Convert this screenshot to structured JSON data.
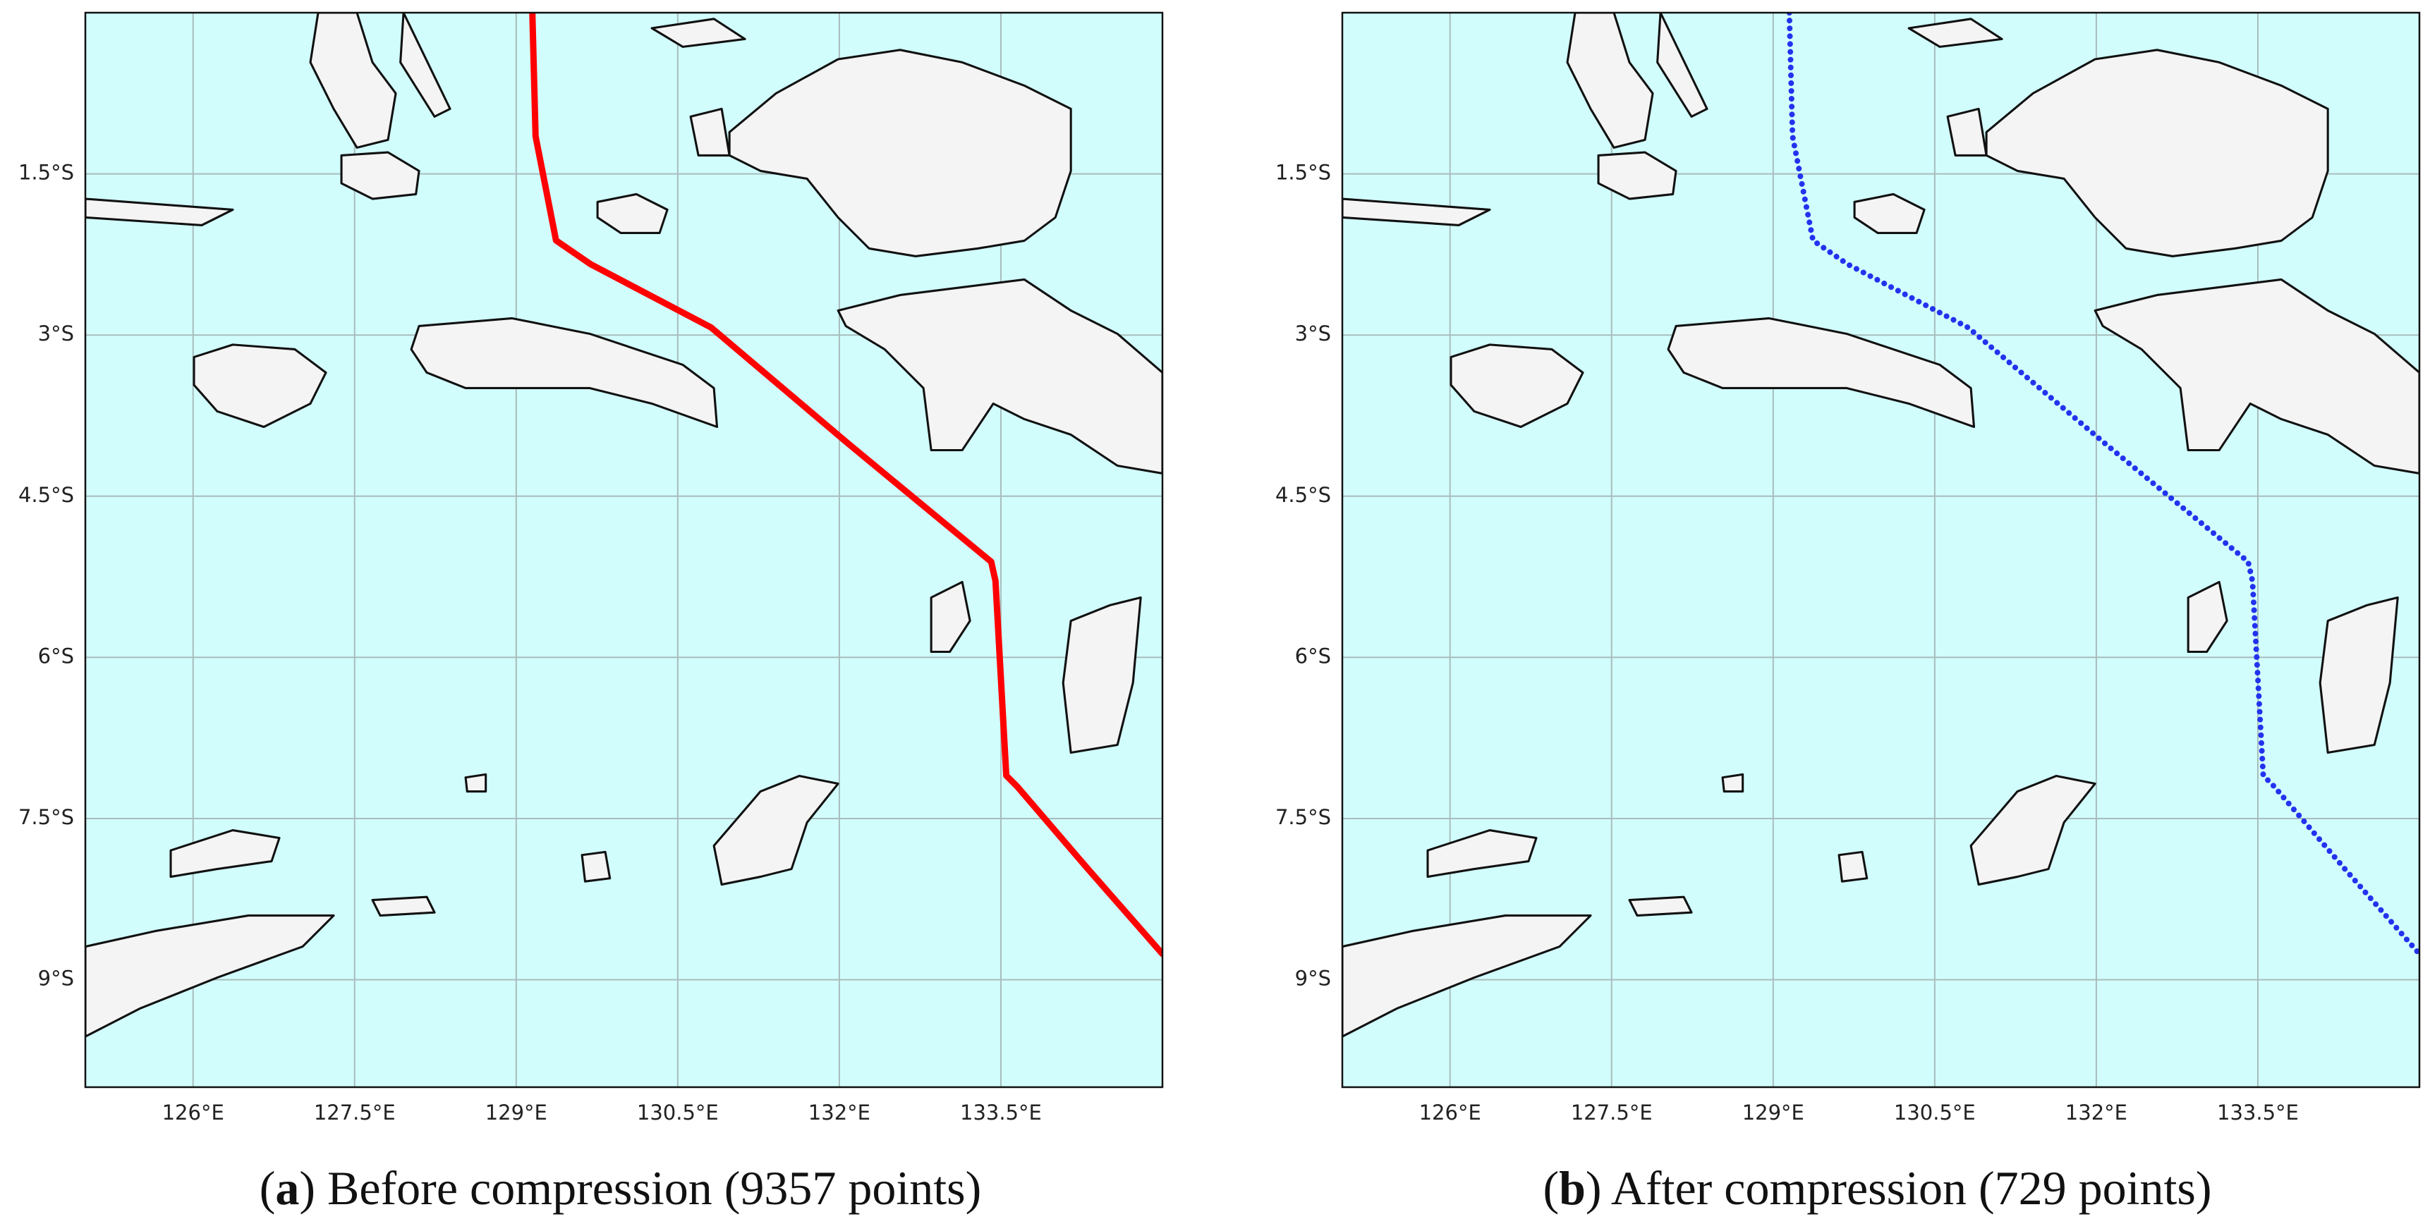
{
  "chart_data": [
    {
      "type": "line",
      "caption": "(a) Before compression (9357 points)",
      "color": "#ff0000",
      "line_style": "solid",
      "grid": true,
      "xlim": [
        125,
        135
      ],
      "ylim": [
        -10,
        0
      ],
      "xticks": [
        {
          "value": 126,
          "label": "126°E"
        },
        {
          "value": 127.5,
          "label": "127.5°E"
        },
        {
          "value": 129,
          "label": "129°E"
        },
        {
          "value": 130.5,
          "label": "130.5°E"
        },
        {
          "value": 132,
          "label": "132°E"
        },
        {
          "value": 133.5,
          "label": "133.5°E"
        }
      ],
      "yticks": [
        {
          "value": -1.5,
          "label": "1.5°S"
        },
        {
          "value": -3,
          "label": "3°S"
        },
        {
          "value": -4.5,
          "label": "4.5°S"
        },
        {
          "value": -6,
          "label": "6°S"
        },
        {
          "value": -7.5,
          "label": "7.5°S"
        },
        {
          "value": -9,
          "label": "9°S"
        }
      ],
      "x": [
        129.15,
        129.18,
        129.37,
        129.69,
        130.81,
        132.07,
        133.41,
        133.45,
        133.55,
        133.65,
        134.3,
        135.0
      ],
      "values": [
        0,
        -1.15,
        -2.12,
        -2.34,
        -2.93,
        -4.0,
        -5.11,
        -5.29,
        -7.1,
        -7.2,
        -7.96,
        -8.76
      ]
    },
    {
      "type": "line",
      "caption": "(b) After compression (729 points)",
      "color": "#2233ee",
      "line_style": "dotted",
      "grid": true,
      "xlim": [
        125,
        135
      ],
      "ylim": [
        -10,
        0
      ],
      "xticks": [
        {
          "value": 126,
          "label": "126°E"
        },
        {
          "value": 127.5,
          "label": "127.5°E"
        },
        {
          "value": 129,
          "label": "129°E"
        },
        {
          "value": 130.5,
          "label": "130.5°E"
        },
        {
          "value": 132,
          "label": "132°E"
        },
        {
          "value": 133.5,
          "label": "133.5°E"
        }
      ],
      "yticks": [
        {
          "value": -1.5,
          "label": "1.5°S"
        },
        {
          "value": -3,
          "label": "3°S"
        },
        {
          "value": -4.5,
          "label": "4.5°S"
        },
        {
          "value": -6,
          "label": "6°S"
        },
        {
          "value": -7.5,
          "label": "7.5°S"
        },
        {
          "value": -9,
          "label": "9°S"
        }
      ],
      "x": [
        129.15,
        129.18,
        129.37,
        129.69,
        130.81,
        132.07,
        133.41,
        133.45,
        133.55,
        133.65,
        134.3,
        135.0
      ],
      "values": [
        0,
        -1.15,
        -2.12,
        -2.34,
        -2.93,
        -4.0,
        -5.11,
        -5.29,
        -7.1,
        -7.2,
        -7.96,
        -8.76
      ]
    }
  ]
}
